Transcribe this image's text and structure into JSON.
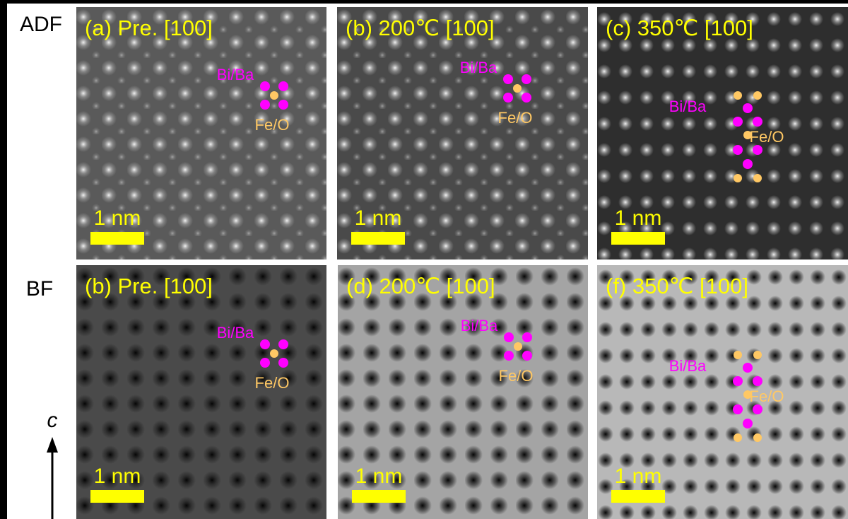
{
  "row_labels": [
    "ADF",
    "BF"
  ],
  "axis_label": "c",
  "panels": [
    {
      "title": "(a) Pre. [100]",
      "scale_bar": "1 nm",
      "site_a": "Bi/Ba",
      "site_b": "Fe/O"
    },
    {
      "title": "(b) 200℃ [100]",
      "scale_bar": "1 nm",
      "site_a": "Bi/Ba",
      "site_b": "Fe/O"
    },
    {
      "title": "(c) 350℃ [100]",
      "scale_bar": "1 nm",
      "site_a": "Bi/Ba",
      "site_b": "Fe/O"
    },
    {
      "title": "(b) Pre. [100]",
      "scale_bar": "1 nm",
      "site_a": "Bi/Ba",
      "site_b": "Fe/O"
    },
    {
      "title": "(d) 200℃ [100]",
      "scale_bar": "1 nm",
      "site_a": "Bi/Ba",
      "site_b": "Fe/O"
    },
    {
      "title": "(f) 350℃ [100]",
      "scale_bar": "1 nm",
      "site_a": "Bi/Ba",
      "site_b": "Fe/O"
    }
  ]
}
